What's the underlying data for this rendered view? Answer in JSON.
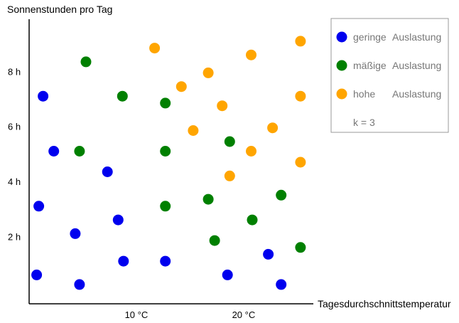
{
  "chart_data": {
    "type": "scatter",
    "title": "",
    "ylabel": "Sonnenstunden pro Tag",
    "xlabel": "Tagesdurchschnittstemperatur",
    "xlim": [
      0,
      26.5
    ],
    "ylim": [
      -0.45,
      9.9
    ],
    "x_ticks": [
      {
        "value": 10,
        "label": "10 °C"
      },
      {
        "value": 20,
        "label": "20 °C"
      }
    ],
    "y_ticks": [
      {
        "value": 2,
        "label": "2 h"
      },
      {
        "value": 4,
        "label": "4 h"
      },
      {
        "value": 6,
        "label": "6 h"
      },
      {
        "value": 8,
        "label": "8 h"
      }
    ],
    "grid": false,
    "legend_position": "top-right",
    "series": [
      {
        "name": "geringe",
        "suffix": "Auslastung",
        "color": "#0000ee",
        "points": [
          [
            1.3,
            7.1
          ],
          [
            2.3,
            5.1
          ],
          [
            7.3,
            4.35
          ],
          [
            0.9,
            3.1
          ],
          [
            4.3,
            2.1
          ],
          [
            8.3,
            2.6
          ],
          [
            0.7,
            0.6
          ],
          [
            4.7,
            0.25
          ],
          [
            8.8,
            1.1
          ],
          [
            12.7,
            1.1
          ],
          [
            18.5,
            0.6
          ],
          [
            22.3,
            1.35
          ],
          [
            23.5,
            0.25
          ]
        ]
      },
      {
        "name": "mäßige",
        "suffix": "Auslastung",
        "color": "#008000",
        "points": [
          [
            5.3,
            8.35
          ],
          [
            8.7,
            7.1
          ],
          [
            12.7,
            6.85
          ],
          [
            4.7,
            5.1
          ],
          [
            12.7,
            5.1
          ],
          [
            18.7,
            5.45
          ],
          [
            12.7,
            3.1
          ],
          [
            16.7,
            3.35
          ],
          [
            20.8,
            2.6
          ],
          [
            23.5,
            3.5
          ],
          [
            17.3,
            1.85
          ],
          [
            25.3,
            1.6
          ]
        ]
      },
      {
        "name": "hohe",
        "suffix": "Auslastung",
        "color": "#ffa500",
        "points": [
          [
            11.7,
            8.85
          ],
          [
            20.7,
            8.6
          ],
          [
            25.3,
            9.1
          ],
          [
            16.7,
            7.95
          ],
          [
            14.2,
            7.45
          ],
          [
            18.0,
            6.75
          ],
          [
            25.3,
            7.1
          ],
          [
            15.3,
            5.85
          ],
          [
            22.7,
            5.95
          ],
          [
            20.7,
            5.1
          ],
          [
            18.7,
            4.2
          ],
          [
            25.3,
            4.7
          ]
        ]
      }
    ],
    "annotation": "k = 3"
  }
}
